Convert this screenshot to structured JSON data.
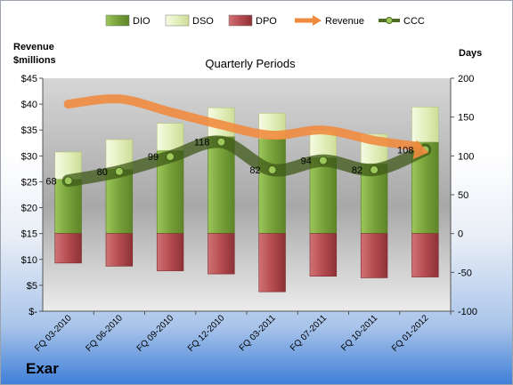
{
  "chart_data": {
    "type": "bar",
    "title": "Quarterly Periods",
    "ylabel": "Revenue\n$millions",
    "y2label": "Days",
    "categories": [
      "FQ 03-2010",
      "FQ 06-2010",
      "FQ 09-2010",
      "FQ 12-2010",
      "FQ 03-2011",
      "FQ 07-2011",
      "FQ 10-2011",
      "FQ 01-2012"
    ],
    "y_ticks": [
      "$-",
      "$5",
      "$10",
      "$15",
      "$20",
      "$25",
      "$30",
      "$35",
      "$40",
      "$45"
    ],
    "ylim": [
      0,
      45
    ],
    "y2_ticks": [
      "-100",
      "-50",
      "0",
      "50",
      "100",
      "150",
      "200"
    ],
    "y2lim": [
      -100,
      200
    ],
    "legend_position": "top",
    "grid": false,
    "series": [
      {
        "name": "DIO",
        "kind": "stacked-bar",
        "axis": "days",
        "color": "#77a13a",
        "values": [
          70,
          83,
          107,
          125,
          122,
          98,
          90,
          118
        ]
      },
      {
        "name": "DSO",
        "kind": "stacked-bar",
        "axis": "days",
        "color": "#e9f3c6",
        "values": [
          35,
          38,
          35,
          37,
          33,
          35,
          38,
          45
        ]
      },
      {
        "name": "DPO",
        "kind": "bar-negative",
        "axis": "days",
        "color": "#b44b50",
        "values": [
          -38,
          -42,
          -48,
          -52,
          -75,
          -55,
          -57,
          -56
        ]
      },
      {
        "name": "Revenue",
        "kind": "line",
        "axis": "revenue",
        "color": "#f08a3c",
        "values": [
          40,
          41,
          38.5,
          36,
          34,
          35,
          33,
          31
        ]
      },
      {
        "name": "CCC",
        "kind": "line",
        "axis": "days",
        "color": "#4f6b1f",
        "values": [
          68,
          80,
          99,
          118,
          82,
          94,
          82,
          108
        ]
      }
    ],
    "data_labels": [
      "68",
      "80",
      "99",
      "118",
      "82",
      "94",
      "82",
      "108"
    ]
  },
  "company": "Exar"
}
